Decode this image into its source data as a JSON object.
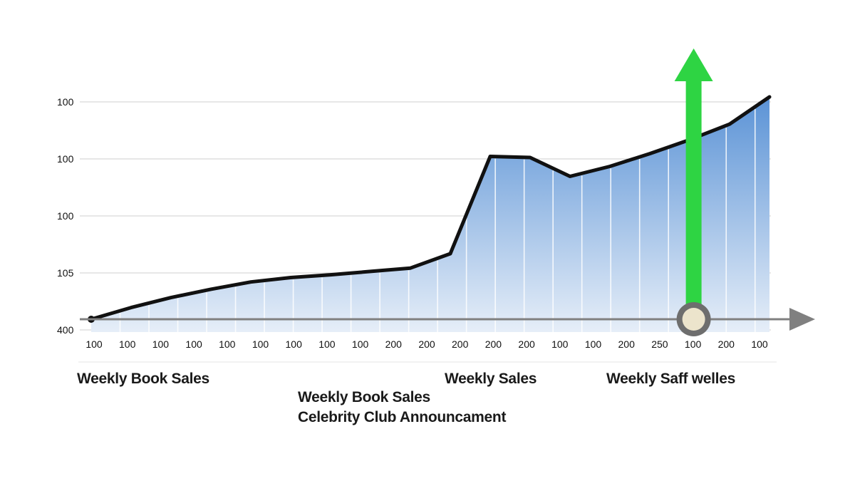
{
  "chart_data": {
    "type": "area",
    "y_tick_labels": [
      "100",
      "100",
      "100",
      "105",
      "400"
    ],
    "x_tick_labels": [
      "100",
      "100",
      "100",
      "100",
      "100",
      "100",
      "100",
      "100",
      "100",
      "200",
      "200",
      "200",
      "200",
      "200",
      "100",
      "100",
      "200",
      "250",
      "100",
      "200",
      "100"
    ],
    "values": [
      0,
      2.1,
      3.9,
      5.4,
      6.7,
      7.5,
      8.0,
      8.6,
      9.2,
      11.8,
      29.3,
      29.1,
      25.7,
      27.5,
      29.8,
      32.3,
      35.1,
      40.0
    ],
    "ylim": [
      0,
      40
    ],
    "grid": true,
    "annotation": {
      "type": "marker-arrow",
      "x_index": 15.1,
      "labels": [
        "Weekly Book Sales",
        "Celebrity Club Announcament"
      ]
    },
    "texts": {
      "left": "Weekly Book Sales",
      "middle": "Weekly Sales",
      "right": "Weekly Saff welles"
    }
  },
  "colors": {
    "area_top": "#5b93d6",
    "area_bottom": "#e6eef8",
    "line": "#111111",
    "arrow": "#2ed443",
    "axis": "#808080",
    "marker": "#ece4cc"
  }
}
